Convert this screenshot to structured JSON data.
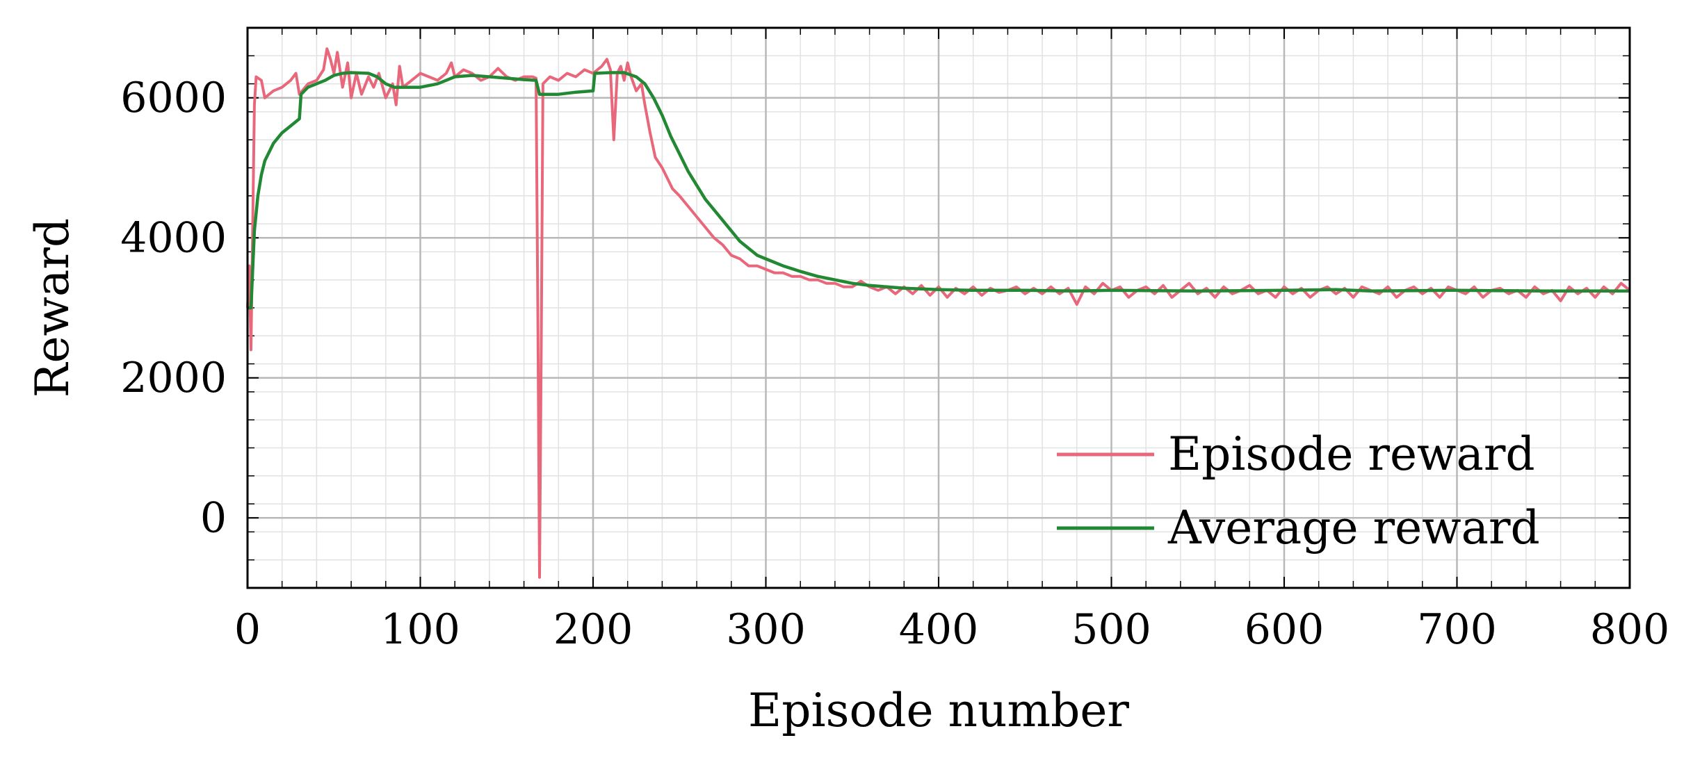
{
  "chart_data": {
    "type": "line",
    "title": "",
    "xlabel": "Episode number",
    "ylabel": "Reward",
    "xlim": [
      0,
      800
    ],
    "ylim": [
      -1000,
      7000
    ],
    "x_ticks": [
      0,
      100,
      200,
      300,
      400,
      500,
      600,
      700,
      800
    ],
    "y_ticks": [
      0,
      2000,
      4000,
      6000
    ],
    "x_minor_step": 20,
    "y_minor_step": 400,
    "grid": true,
    "legend_position": "bottom-right",
    "series": [
      {
        "name": "Episode reward",
        "color": "#e8677a",
        "points": [
          [
            0,
            3000
          ],
          [
            1,
            3600
          ],
          [
            2,
            2400
          ],
          [
            3,
            4200
          ],
          [
            4,
            5900
          ],
          [
            5,
            6300
          ],
          [
            8,
            6250
          ],
          [
            10,
            6000
          ],
          [
            15,
            6100
          ],
          [
            20,
            6150
          ],
          [
            25,
            6250
          ],
          [
            28,
            6350
          ],
          [
            30,
            6050
          ],
          [
            35,
            6200
          ],
          [
            40,
            6250
          ],
          [
            44,
            6400
          ],
          [
            46,
            6700
          ],
          [
            48,
            6550
          ],
          [
            50,
            6350
          ],
          [
            52,
            6650
          ],
          [
            55,
            6150
          ],
          [
            58,
            6500
          ],
          [
            60,
            6000
          ],
          [
            63,
            6350
          ],
          [
            66,
            6050
          ],
          [
            70,
            6300
          ],
          [
            73,
            6150
          ],
          [
            76,
            6350
          ],
          [
            80,
            6000
          ],
          [
            84,
            6200
          ],
          [
            86,
            5900
          ],
          [
            88,
            6450
          ],
          [
            90,
            6150
          ],
          [
            95,
            6250
          ],
          [
            100,
            6350
          ],
          [
            105,
            6300
          ],
          [
            110,
            6250
          ],
          [
            115,
            6350
          ],
          [
            118,
            6500
          ],
          [
            120,
            6300
          ],
          [
            125,
            6400
          ],
          [
            130,
            6350
          ],
          [
            135,
            6250
          ],
          [
            140,
            6300
          ],
          [
            145,
            6420
          ],
          [
            150,
            6300
          ],
          [
            155,
            6250
          ],
          [
            160,
            6300
          ],
          [
            165,
            6300
          ],
          [
            167,
            6280
          ],
          [
            168,
            3000
          ],
          [
            169,
            -850
          ],
          [
            170,
            2500
          ],
          [
            171,
            6200
          ],
          [
            175,
            6300
          ],
          [
            180,
            6250
          ],
          [
            185,
            6350
          ],
          [
            190,
            6300
          ],
          [
            195,
            6400
          ],
          [
            200,
            6350
          ],
          [
            205,
            6450
          ],
          [
            208,
            6550
          ],
          [
            210,
            6400
          ],
          [
            212,
            5400
          ],
          [
            214,
            6350
          ],
          [
            216,
            6450
          ],
          [
            218,
            6250
          ],
          [
            220,
            6500
          ],
          [
            222,
            6300
          ],
          [
            225,
            6100
          ],
          [
            228,
            6200
          ],
          [
            230,
            5900
          ],
          [
            233,
            5500
          ],
          [
            236,
            5150
          ],
          [
            240,
            5000
          ],
          [
            243,
            4850
          ],
          [
            246,
            4700
          ],
          [
            250,
            4600
          ],
          [
            255,
            4450
          ],
          [
            260,
            4300
          ],
          [
            265,
            4150
          ],
          [
            270,
            4000
          ],
          [
            275,
            3900
          ],
          [
            280,
            3750
          ],
          [
            285,
            3700
          ],
          [
            290,
            3600
          ],
          [
            295,
            3600
          ],
          [
            300,
            3550
          ],
          [
            305,
            3500
          ],
          [
            310,
            3500
          ],
          [
            315,
            3450
          ],
          [
            320,
            3450
          ],
          [
            325,
            3400
          ],
          [
            330,
            3400
          ],
          [
            335,
            3350
          ],
          [
            340,
            3350
          ],
          [
            345,
            3300
          ],
          [
            350,
            3300
          ],
          [
            355,
            3380
          ],
          [
            360,
            3300
          ],
          [
            365,
            3250
          ],
          [
            370,
            3300
          ],
          [
            375,
            3200
          ],
          [
            380,
            3300
          ],
          [
            385,
            3200
          ],
          [
            390,
            3320
          ],
          [
            395,
            3180
          ],
          [
            400,
            3300
          ],
          [
            405,
            3150
          ],
          [
            410,
            3280
          ],
          [
            415,
            3200
          ],
          [
            420,
            3300
          ],
          [
            425,
            3180
          ],
          [
            430,
            3280
          ],
          [
            435,
            3220
          ],
          [
            440,
            3250
          ],
          [
            445,
            3300
          ],
          [
            450,
            3200
          ],
          [
            455,
            3280
          ],
          [
            460,
            3200
          ],
          [
            465,
            3300
          ],
          [
            470,
            3200
          ],
          [
            475,
            3280
          ],
          [
            480,
            3050
          ],
          [
            485,
            3300
          ],
          [
            490,
            3200
          ],
          [
            495,
            3350
          ],
          [
            500,
            3250
          ],
          [
            505,
            3300
          ],
          [
            510,
            3150
          ],
          [
            515,
            3250
          ],
          [
            520,
            3300
          ],
          [
            525,
            3200
          ],
          [
            530,
            3320
          ],
          [
            535,
            3150
          ],
          [
            540,
            3250
          ],
          [
            545,
            3350
          ],
          [
            550,
            3200
          ],
          [
            555,
            3280
          ],
          [
            560,
            3150
          ],
          [
            565,
            3300
          ],
          [
            570,
            3200
          ],
          [
            575,
            3250
          ],
          [
            580,
            3320
          ],
          [
            585,
            3200
          ],
          [
            590,
            3250
          ],
          [
            595,
            3150
          ],
          [
            600,
            3300
          ],
          [
            605,
            3200
          ],
          [
            610,
            3280
          ],
          [
            615,
            3150
          ],
          [
            620,
            3250
          ],
          [
            625,
            3300
          ],
          [
            630,
            3200
          ],
          [
            635,
            3280
          ],
          [
            640,
            3150
          ],
          [
            645,
            3300
          ],
          [
            650,
            3250
          ],
          [
            655,
            3200
          ],
          [
            660,
            3300
          ],
          [
            665,
            3150
          ],
          [
            670,
            3250
          ],
          [
            675,
            3300
          ],
          [
            680,
            3200
          ],
          [
            685,
            3280
          ],
          [
            690,
            3150
          ],
          [
            695,
            3300
          ],
          [
            700,
            3250
          ],
          [
            705,
            3200
          ],
          [
            710,
            3300
          ],
          [
            715,
            3150
          ],
          [
            720,
            3250
          ],
          [
            725,
            3280
          ],
          [
            730,
            3200
          ],
          [
            735,
            3250
          ],
          [
            740,
            3150
          ],
          [
            745,
            3300
          ],
          [
            750,
            3200
          ],
          [
            755,
            3250
          ],
          [
            760,
            3100
          ],
          [
            765,
            3300
          ],
          [
            770,
            3200
          ],
          [
            775,
            3280
          ],
          [
            780,
            3150
          ],
          [
            785,
            3300
          ],
          [
            790,
            3200
          ],
          [
            795,
            3350
          ],
          [
            800,
            3250
          ]
        ]
      },
      {
        "name": "Average reward",
        "color": "#228833",
        "points": [
          [
            0,
            3000
          ],
          [
            2,
            3000
          ],
          [
            4,
            4100
          ],
          [
            6,
            4600
          ],
          [
            8,
            4900
          ],
          [
            10,
            5100
          ],
          [
            15,
            5350
          ],
          [
            20,
            5500
          ],
          [
            25,
            5600
          ],
          [
            30,
            5700
          ],
          [
            31,
            6050
          ],
          [
            35,
            6150
          ],
          [
            40,
            6200
          ],
          [
            45,
            6250
          ],
          [
            50,
            6320
          ],
          [
            55,
            6350
          ],
          [
            60,
            6360
          ],
          [
            70,
            6350
          ],
          [
            75,
            6300
          ],
          [
            80,
            6200
          ],
          [
            85,
            6150
          ],
          [
            90,
            6150
          ],
          [
            100,
            6150
          ],
          [
            110,
            6200
          ],
          [
            115,
            6250
          ],
          [
            120,
            6300
          ],
          [
            130,
            6320
          ],
          [
            140,
            6300
          ],
          [
            150,
            6280
          ],
          [
            160,
            6260
          ],
          [
            167,
            6250
          ],
          [
            169,
            6050
          ],
          [
            180,
            6050
          ],
          [
            190,
            6080
          ],
          [
            200,
            6100
          ],
          [
            201,
            6350
          ],
          [
            210,
            6360
          ],
          [
            218,
            6360
          ],
          [
            225,
            6300
          ],
          [
            230,
            6200
          ],
          [
            235,
            6000
          ],
          [
            240,
            5750
          ],
          [
            245,
            5450
          ],
          [
            250,
            5200
          ],
          [
            255,
            4950
          ],
          [
            260,
            4750
          ],
          [
            265,
            4550
          ],
          [
            270,
            4400
          ],
          [
            275,
            4250
          ],
          [
            280,
            4100
          ],
          [
            285,
            3950
          ],
          [
            290,
            3850
          ],
          [
            295,
            3750
          ],
          [
            300,
            3700
          ],
          [
            310,
            3600
          ],
          [
            320,
            3520
          ],
          [
            330,
            3450
          ],
          [
            340,
            3400
          ],
          [
            350,
            3350
          ],
          [
            360,
            3320
          ],
          [
            370,
            3300
          ],
          [
            380,
            3280
          ],
          [
            400,
            3260
          ],
          [
            420,
            3250
          ],
          [
            450,
            3250
          ],
          [
            480,
            3240
          ],
          [
            500,
            3250
          ],
          [
            550,
            3240
          ],
          [
            600,
            3250
          ],
          [
            630,
            3260
          ],
          [
            650,
            3240
          ],
          [
            700,
            3250
          ],
          [
            750,
            3240
          ],
          [
            800,
            3240
          ]
        ]
      }
    ]
  }
}
